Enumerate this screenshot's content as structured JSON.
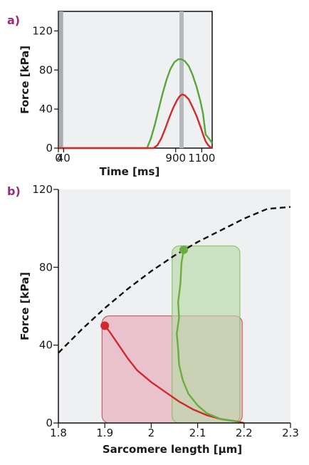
{
  "chart_data": [
    {
      "panel_label": "a)",
      "type": "line",
      "xlabel": "Time [ms]",
      "ylabel": "Force [kPa]",
      "xlim": [
        0,
        1180
      ],
      "ylim": [
        0,
        140
      ],
      "xticks": [
        0,
        40,
        900,
        1100
      ],
      "xtick_labels": [
        "0",
        "40",
        "900",
        "1100"
      ],
      "yticks": [
        0,
        40,
        80,
        120
      ],
      "ytick_labels": [
        "0",
        "40",
        "80",
        "120"
      ],
      "background": "#eef0f2",
      "markers": [
        {
          "x": 20,
          "color": "#a9acb0"
        },
        {
          "x": 945,
          "color": "#b4b7bb"
        }
      ],
      "series": [
        {
          "color": "#5aa53b",
          "x": [
            0,
            680,
            710,
            740,
            770,
            800,
            830,
            860,
            890,
            920,
            945,
            970,
            1000,
            1030,
            1060,
            1090,
            1110,
            1130,
            1160,
            1180
          ],
          "y": [
            0,
            0,
            10,
            24,
            40,
            56,
            70,
            81,
            88,
            91,
            91,
            89,
            84,
            75,
            63,
            48,
            35,
            14,
            9,
            5
          ]
        },
        {
          "color": "#d22a2a",
          "x": [
            0,
            730,
            760,
            790,
            820,
            850,
            880,
            910,
            930,
            950,
            970,
            1000,
            1030,
            1060,
            1090,
            1110,
            1130,
            1150,
            1165,
            1180
          ],
          "y": [
            0,
            0,
            3,
            10,
            20,
            31,
            41,
            49,
            53,
            55,
            54,
            50,
            42,
            33,
            22,
            14,
            7,
            3,
            1,
            0
          ]
        }
      ]
    },
    {
      "panel_label": "b)",
      "type": "line",
      "xlabel": "Sarcomere length [µm]",
      "ylabel": "Force [kPa]",
      "xlim": [
        1.8,
        2.3
      ],
      "ylim": [
        0,
        120
      ],
      "xticks": [
        1.8,
        1.9,
        2.0,
        2.1,
        2.2,
        2.3
      ],
      "xtick_labels": [
        "1.8",
        "1.9",
        "2",
        "2.1",
        "2.2",
        "2.3"
      ],
      "yticks": [
        0,
        40,
        80,
        120
      ],
      "ytick_labels": [
        "0",
        "40",
        "80",
        "120"
      ],
      "background": "#eef0f2",
      "boxes": [
        {
          "x": [
            1.894,
            2.196
          ],
          "y": [
            0,
            55
          ],
          "fill": "#e8a9b8",
          "stroke": "#c24a4a"
        },
        {
          "x": [
            2.045,
            2.191
          ],
          "y": [
            0,
            91
          ],
          "fill": "#b9d8a6",
          "stroke": "#7fbf5c"
        }
      ],
      "series": [
        {
          "style": "dashed",
          "color": "#111111",
          "x": [
            1.8,
            1.85,
            1.9,
            1.95,
            2.0,
            2.05,
            2.1,
            2.15,
            2.2,
            2.25,
            2.3
          ],
          "y": [
            36,
            48,
            59,
            69,
            78,
            86,
            93,
            99,
            105,
            110,
            111
          ]
        },
        {
          "color": "#d22a2a",
          "x": [
            1.9,
            1.91,
            1.93,
            1.95,
            1.97,
            2.0,
            2.03,
            2.06,
            2.09,
            2.12,
            2.15,
            2.18,
            2.2
          ],
          "y": [
            50,
            47,
            40,
            33,
            27,
            21,
            16,
            11,
            7,
            4,
            2,
            1,
            0
          ]
        },
        {
          "color": "#6aae3f",
          "x": [
            2.07,
            2.065,
            2.063,
            2.058,
            2.06,
            2.055,
            2.058,
            2.06,
            2.068,
            2.08,
            2.1,
            2.12,
            2.15,
            2.18,
            2.19
          ],
          "y": [
            89,
            82,
            72,
            62,
            54,
            46,
            38,
            30,
            22,
            15,
            9,
            5,
            2,
            1,
            0
          ]
        }
      ],
      "points": [
        {
          "x": 1.9,
          "y": 50,
          "color": "#d22a2a"
        },
        {
          "x": 2.07,
          "y": 89,
          "color": "#6aae3f"
        }
      ]
    }
  ]
}
